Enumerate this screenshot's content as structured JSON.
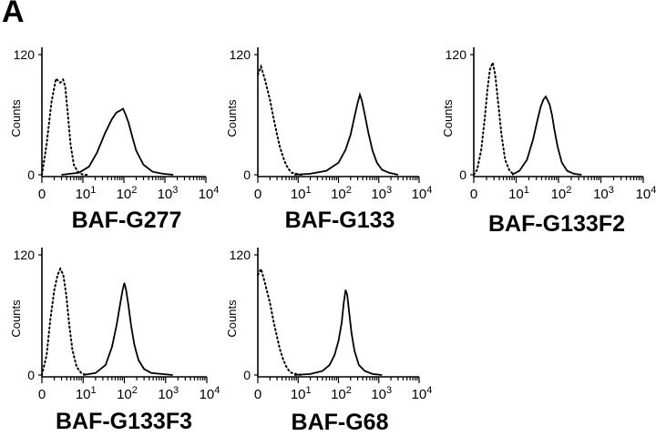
{
  "panel_letter": "A",
  "chart_data": [
    {
      "type": "line",
      "label": "BAF-G277",
      "ylabel": "Counts",
      "ylim": [
        0,
        120
      ],
      "yticks": [
        "0",
        "120"
      ],
      "xscale": "log",
      "xlim": [
        1,
        10000
      ],
      "xticks": [
        "0",
        "1",
        "2",
        "3",
        "4"
      ],
      "series": [
        {
          "style": "dotted",
          "x": [
            1,
            1.3,
            1.7,
            2.2,
            2.8,
            3.3,
            3.7,
            4.3,
            5,
            6,
            7.5,
            10,
            13
          ],
          "y": [
            0,
            30,
            72,
            96,
            92,
            95,
            88,
            60,
            30,
            10,
            3,
            0,
            0
          ]
        },
        {
          "style": "solid",
          "x": [
            3,
            8,
            14,
            22,
            35,
            50,
            65,
            80,
            95,
            110,
            130,
            160,
            200,
            300,
            500,
            900,
            1600
          ],
          "y": [
            0,
            2,
            8,
            22,
            42,
            55,
            62,
            64,
            66,
            60,
            52,
            38,
            24,
            10,
            3,
            1,
            0
          ]
        }
      ]
    },
    {
      "type": "line",
      "label": "BAF-G133",
      "ylabel": "Counts",
      "ylim": [
        0,
        120
      ],
      "yticks": [
        "0",
        "120"
      ],
      "xscale": "log",
      "xlim": [
        1,
        10000
      ],
      "xticks": [
        "0",
        "1",
        "2",
        "3",
        "4"
      ],
      "series": [
        {
          "style": "dotted",
          "x": [
            1,
            1.2,
            1.5,
            2,
            2.5,
            3,
            3.5,
            4.2,
            5,
            6,
            7,
            9,
            12
          ],
          "y": [
            100,
            108,
            95,
            75,
            55,
            40,
            28,
            18,
            10,
            5,
            2,
            1,
            0
          ]
        },
        {
          "style": "solid",
          "x": [
            8,
            20,
            50,
            100,
            150,
            200,
            250,
            300,
            340,
            380,
            450,
            550,
            700,
            900,
            1200,
            1800,
            3000
          ],
          "y": [
            0,
            1,
            4,
            12,
            25,
            40,
            58,
            72,
            80,
            74,
            60,
            42,
            24,
            12,
            5,
            2,
            0
          ]
        }
      ]
    },
    {
      "type": "line",
      "label": "BAF-G133F2",
      "ylabel": "Counts",
      "ylim": [
        0,
        120
      ],
      "yticks": [
        "0",
        "120"
      ],
      "xscale": "log",
      "xlim": [
        1,
        10000
      ],
      "xticks": [
        "0",
        "1",
        "2",
        "3",
        "4"
      ],
      "series": [
        {
          "style": "dotted",
          "x": [
            1,
            1.2,
            1.5,
            1.8,
            2.1,
            2.4,
            2.8,
            3.2,
            3.8,
            4.5,
            5.5,
            7,
            9
          ],
          "y": [
            0,
            5,
            25,
            55,
            85,
            105,
            112,
            100,
            70,
            40,
            15,
            4,
            0
          ]
        },
        {
          "style": "solid",
          "x": [
            8,
            12,
            18,
            25,
            32,
            38,
            44,
            50,
            56,
            62,
            70,
            80,
            95,
            120,
            160,
            230,
            350
          ],
          "y": [
            0,
            4,
            15,
            35,
            55,
            68,
            75,
            78,
            74,
            70,
            60,
            45,
            28,
            12,
            4,
            1,
            0
          ]
        }
      ]
    },
    {
      "type": "line",
      "label": "BAF-G133F3",
      "ylabel": "Counts",
      "ylim": [
        0,
        120
      ],
      "yticks": [
        "0",
        "120"
      ],
      "xscale": "log",
      "xlim": [
        1,
        10000
      ],
      "xticks": [
        "0",
        "1",
        "2",
        "3",
        "4"
      ],
      "series": [
        {
          "style": "dotted",
          "x": [
            1,
            1.3,
            1.6,
            2,
            2.4,
            2.8,
            3.3,
            3.9,
            4.6,
            5.5,
            7,
            9,
            12
          ],
          "y": [
            0,
            20,
            55,
            85,
            100,
            106,
            100,
            80,
            50,
            25,
            8,
            2,
            0
          ]
        },
        {
          "style": "solid",
          "x": [
            10,
            20,
            35,
            50,
            65,
            80,
            90,
            100,
            110,
            125,
            145,
            175,
            220,
            300,
            450,
            800,
            1500
          ],
          "y": [
            0,
            2,
            10,
            28,
            50,
            72,
            84,
            92,
            85,
            70,
            50,
            30,
            15,
            6,
            2,
            1,
            0
          ]
        }
      ]
    },
    {
      "type": "line",
      "label": "BAF-G68",
      "ylabel": "Counts",
      "ylim": [
        0,
        120
      ],
      "yticks": [
        "0",
        "120"
      ],
      "xscale": "log",
      "xlim": [
        1,
        10000
      ],
      "xticks": [
        "0",
        "1",
        "2",
        "3",
        "4"
      ],
      "series": [
        {
          "style": "dotted",
          "x": [
            1,
            1.2,
            1.5,
            2,
            2.5,
            3,
            3.5,
            4.2,
            5,
            6,
            7,
            9,
            12
          ],
          "y": [
            100,
            106,
            92,
            72,
            52,
            38,
            26,
            16,
            9,
            4,
            2,
            1,
            0
          ]
        },
        {
          "style": "solid",
          "x": [
            8,
            20,
            40,
            60,
            80,
            100,
            120,
            135,
            150,
            165,
            185,
            210,
            250,
            320,
            450,
            700,
            1200
          ],
          "y": [
            0,
            1,
            4,
            10,
            20,
            34,
            52,
            72,
            85,
            80,
            62,
            42,
            24,
            10,
            4,
            1,
            0
          ]
        }
      ]
    }
  ]
}
